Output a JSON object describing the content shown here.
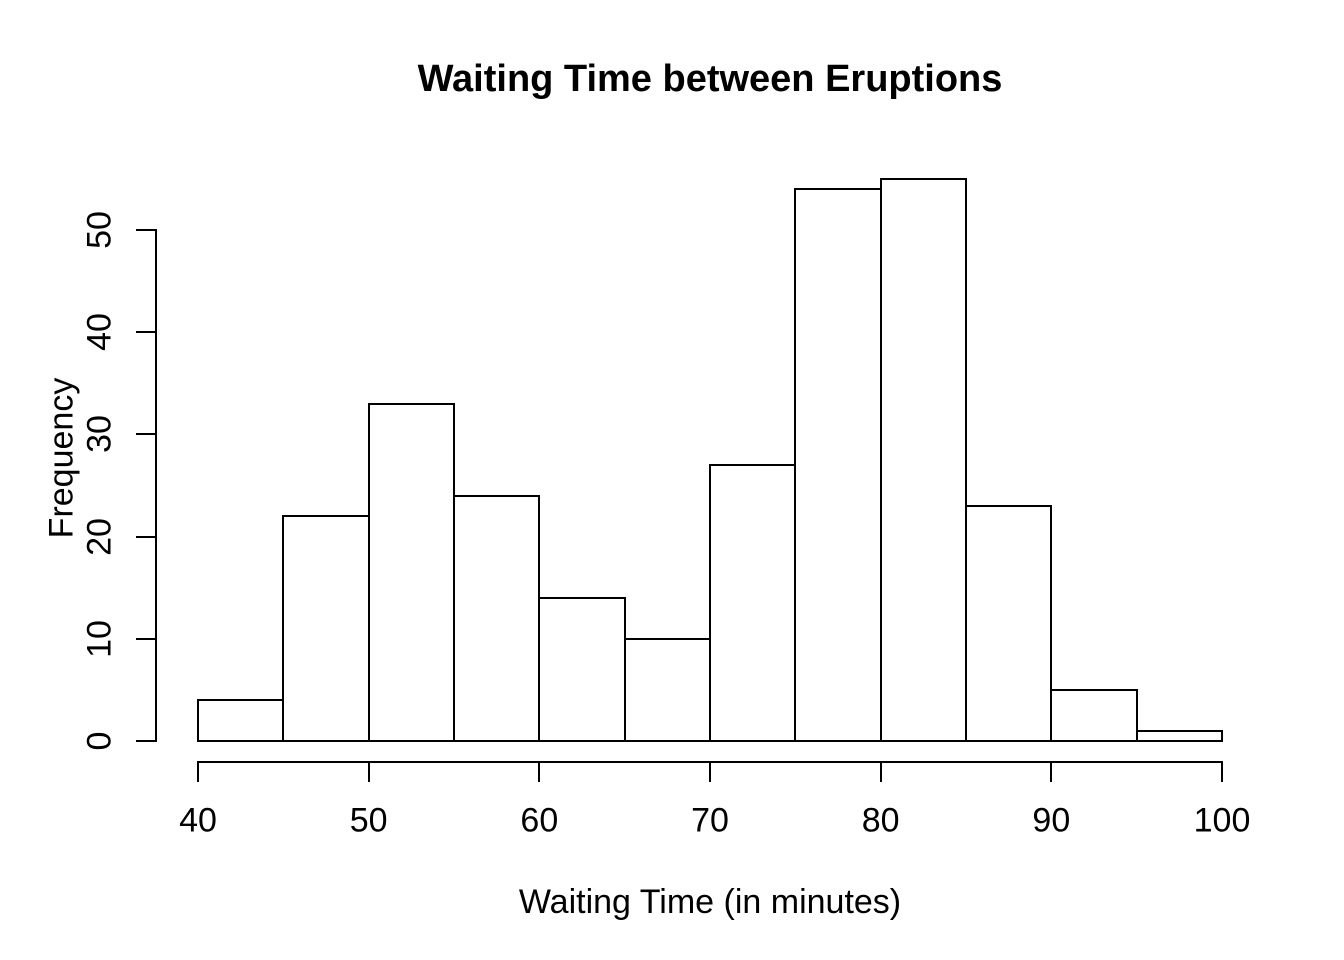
{
  "chart_data": {
    "type": "bar",
    "subtype": "histogram",
    "title": "Waiting Time between Eruptions",
    "xlabel": "Waiting Time (in minutes)",
    "ylabel": "Frequency",
    "bin_edges": [
      40,
      45,
      50,
      55,
      60,
      65,
      70,
      75,
      80,
      85,
      90,
      95,
      100
    ],
    "counts": [
      4,
      22,
      33,
      24,
      14,
      10,
      27,
      54,
      55,
      23,
      5,
      1
    ],
    "x_ticks": [
      40,
      50,
      60,
      70,
      80,
      90,
      100
    ],
    "y_ticks": [
      0,
      10,
      20,
      30,
      40,
      50
    ],
    "xlim": [
      40,
      100
    ],
    "ylim": [
      0,
      55
    ],
    "grid": false,
    "legend": "none",
    "bar_fill": "#ffffff",
    "bar_stroke": "#000000",
    "background": "#ffffff",
    "text_color": "#000000"
  }
}
